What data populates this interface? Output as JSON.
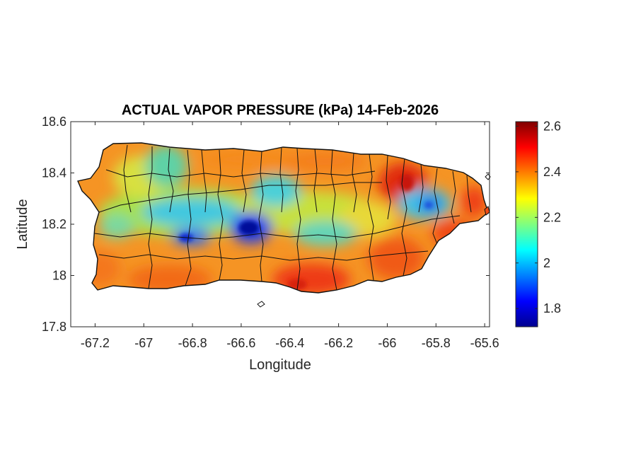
{
  "chart_data": {
    "type": "heatmap",
    "title": "ACTUAL VAPOR PRESSURE (kPa) 14-Feb-2026",
    "xlabel": "Longitude",
    "ylabel": "Latitude",
    "xlim": [
      -67.3,
      -65.58
    ],
    "ylim": [
      17.8,
      18.6
    ],
    "xticks": [
      -67.2,
      -67,
      -66.8,
      -66.6,
      -66.4,
      -66.2,
      -66,
      -65.8,
      -65.6
    ],
    "yticks": [
      17.8,
      18,
      18.2,
      18.4,
      18.6
    ],
    "colorbar": {
      "colormap": "jet",
      "range": [
        1.72,
        2.62
      ],
      "ticks": [
        1.8,
        2,
        2.2,
        2.4,
        2.6
      ]
    },
    "low_centers": [
      {
        "lon": -66.55,
        "lat": 18.18,
        "value": 1.72
      },
      {
        "lon": -66.83,
        "lat": 18.16,
        "value": 1.85
      },
      {
        "lon": -65.82,
        "lat": 18.29,
        "value": 1.95
      },
      {
        "lon": -66.95,
        "lat": 18.38,
        "value": 2.1
      },
      {
        "lon": -66.38,
        "lat": 18.3,
        "value": 2.1
      },
      {
        "lon": -66.1,
        "lat": 18.15,
        "value": 2.15
      }
    ],
    "high_centers": [
      {
        "lon": -65.95,
        "lat": 18.36,
        "value": 2.6
      },
      {
        "lon": -66.3,
        "lat": 17.97,
        "value": 2.55
      },
      {
        "lon": -65.7,
        "lat": 18.08,
        "value": 2.5
      }
    ]
  }
}
